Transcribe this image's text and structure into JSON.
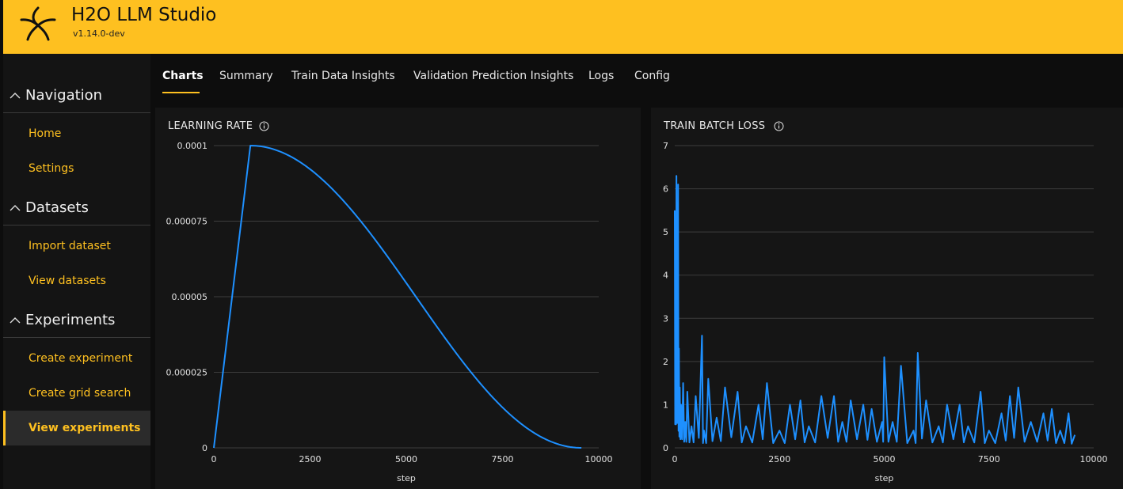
{
  "app": {
    "title": "H2O LLM Studio",
    "version": "v1.14.0-dev"
  },
  "colors": {
    "accent": "#fec020",
    "series": "#1e90ff",
    "card": "#151515"
  },
  "sidebar": {
    "sections": [
      {
        "label": "Navigation",
        "icon": "chevron-up-icon",
        "items": [
          {
            "label": "Home"
          },
          {
            "label": "Settings"
          }
        ]
      },
      {
        "label": "Datasets",
        "icon": "chevron-up-icon",
        "items": [
          {
            "label": "Import dataset"
          },
          {
            "label": "View datasets"
          }
        ]
      },
      {
        "label": "Experiments",
        "icon": "chevron-up-icon",
        "items": [
          {
            "label": "Create experiment"
          },
          {
            "label": "Create grid search"
          },
          {
            "label": "View experiments",
            "active": true
          }
        ]
      }
    ]
  },
  "tabs": [
    {
      "label": "Charts",
      "active": true
    },
    {
      "label": "Summary"
    },
    {
      "label": "Train Data Insights"
    },
    {
      "label": "Validation Prediction Insights"
    },
    {
      "label": "Logs"
    },
    {
      "label": "Config"
    }
  ],
  "chart_data": [
    {
      "type": "line",
      "title": "LEARNING RATE",
      "xlabel": "step",
      "ylabel": "",
      "xlim": [
        0,
        10000
      ],
      "ylim": [
        0,
        0.0001
      ],
      "xticks": [
        "0",
        "2500",
        "5000",
        "7500",
        "10000"
      ],
      "yticks": [
        "0",
        "0.000025",
        "0.00005",
        "0.000075",
        "0.0001"
      ],
      "grid": true,
      "legend": "none",
      "schedule": "linear warmup then cosine decay",
      "series": [
        {
          "x": [
            0,
            950,
            9550
          ],
          "y": [
            0,
            0.0001,
            0
          ]
        }
      ]
    },
    {
      "type": "line",
      "title": "TRAIN BATCH LOSS",
      "xlabel": "step",
      "ylabel": "",
      "xlim": [
        0,
        10000
      ],
      "ylim": [
        0,
        7
      ],
      "xticks": [
        "0",
        "2500",
        "5000",
        "7500",
        "10000"
      ],
      "yticks": [
        "0",
        "1",
        "2",
        "3",
        "4",
        "5",
        "6",
        "7"
      ],
      "grid": true,
      "legend": "none",
      "series": [
        {
          "x": [
            0,
            20,
            40,
            60,
            80,
            100,
            120,
            150,
            200,
            250,
            300,
            400,
            500,
            650,
            700,
            800,
            1000,
            1200,
            1500,
            1700,
            2000,
            2200,
            2500,
            2750,
            3000,
            3200,
            3500,
            3800,
            4000,
            4200,
            4500,
            4700,
            4950,
            5000,
            5200,
            5400,
            5700,
            5800,
            6000,
            6300,
            6500,
            6800,
            7000,
            7300,
            7500,
            7800,
            8000,
            8200,
            8500,
            8800,
            9000,
            9200,
            9400,
            9550
          ],
          "y": [
            5.5,
            3.3,
            6.3,
            3.5,
            6.1,
            2.3,
            1.4,
            1.0,
            1.5,
            0.6,
            1.3,
            0.5,
            1.2,
            2.6,
            0.4,
            1.6,
            0.7,
            1.4,
            1.3,
            0.5,
            1.0,
            1.5,
            0.4,
            1.0,
            1.1,
            0.5,
            1.2,
            1.2,
            0.6,
            1.1,
            1.0,
            0.9,
            0.6,
            2.1,
            0.6,
            1.9,
            0.4,
            2.2,
            1.1,
            0.5,
            1.0,
            1.0,
            0.5,
            1.3,
            0.4,
            0.8,
            1.2,
            1.4,
            0.6,
            0.8,
            0.9,
            0.4,
            0.8,
            0.3
          ]
        }
      ]
    }
  ]
}
